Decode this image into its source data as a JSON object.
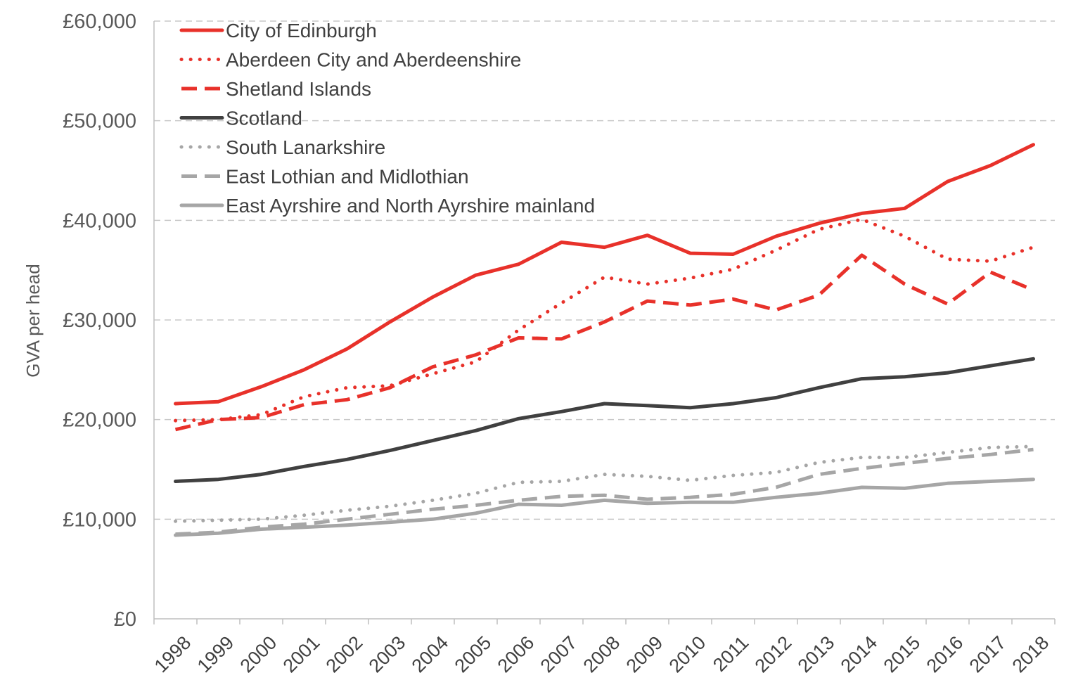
{
  "chart_data": {
    "type": "line",
    "title": "",
    "xlabel": "",
    "ylabel": "GVA per head",
    "ylim": [
      0,
      60000
    ],
    "yticks": [
      0,
      10000,
      20000,
      30000,
      40000,
      50000,
      60000
    ],
    "ytick_labels": [
      "£0",
      "£10,000",
      "£20,000",
      "£30,000",
      "£40,000",
      "£50,000",
      "£60,000"
    ],
    "grid": true,
    "legend_position": "top-left",
    "x": [
      "1998",
      "1999",
      "2000",
      "2001",
      "2002",
      "2003",
      "2004",
      "2005",
      "2006",
      "2007",
      "2008",
      "2009",
      "2010",
      "2011",
      "2012",
      "2013",
      "2014",
      "2015",
      "2016",
      "2017",
      "2018"
    ],
    "series": [
      {
        "name": "City of Edinburgh",
        "color": "#e8312a",
        "style": "solid",
        "values": [
          21600,
          21800,
          23300,
          25000,
          27100,
          29800,
          32300,
          34500,
          35600,
          37800,
          37300,
          38500,
          36700,
          36600,
          38400,
          39700,
          40700,
          41200,
          43900,
          45500,
          47600
        ]
      },
      {
        "name": "Aberdeen City and Aberdeenshire",
        "color": "#e8312a",
        "style": "dotted",
        "values": [
          19900,
          20000,
          20500,
          22300,
          23200,
          23400,
          24600,
          25800,
          29000,
          31700,
          34300,
          33600,
          34200,
          35100,
          37000,
          39100,
          40100,
          38400,
          36100,
          35900,
          37300
        ]
      },
      {
        "name": "Shetland Islands",
        "color": "#e8312a",
        "style": "dashed",
        "values": [
          19000,
          20000,
          20200,
          21500,
          22000,
          23200,
          25300,
          26500,
          28200,
          28100,
          29800,
          31900,
          31500,
          32100,
          31000,
          32500,
          36500,
          33600,
          31600,
          34800,
          33000
        ]
      },
      {
        "name": "Scotland",
        "color": "#404040",
        "style": "solid",
        "values": [
          13800,
          14000,
          14500,
          15300,
          16000,
          16900,
          17900,
          18900,
          20100,
          20800,
          21600,
          21400,
          21200,
          21600,
          22200,
          23200,
          24100,
          24300,
          24700,
          25400,
          26100
        ]
      },
      {
        "name": "South Lanarkshire",
        "color": "#a6a6a6",
        "style": "dotted",
        "values": [
          9800,
          9900,
          10000,
          10400,
          10900,
          11300,
          11900,
          12600,
          13700,
          13800,
          14500,
          14300,
          13900,
          14400,
          14700,
          15700,
          16200,
          16200,
          16700,
          17200,
          17300
        ]
      },
      {
        "name": "East Lothian and Midlothian",
        "color": "#a6a6a6",
        "style": "dashed",
        "values": [
          8500,
          8700,
          9200,
          9500,
          10000,
          10500,
          11000,
          11400,
          11900,
          12300,
          12400,
          12000,
          12200,
          12500,
          13200,
          14500,
          15100,
          15600,
          16100,
          16500,
          17000
        ]
      },
      {
        "name": "East Ayrshire and North Ayrshire mainland",
        "color": "#a6a6a6",
        "style": "solid",
        "values": [
          8400,
          8600,
          9000,
          9200,
          9400,
          9700,
          10000,
          10600,
          11500,
          11400,
          11900,
          11600,
          11700,
          11700,
          12200,
          12600,
          13200,
          13100,
          13600,
          13800,
          14000
        ]
      }
    ]
  }
}
